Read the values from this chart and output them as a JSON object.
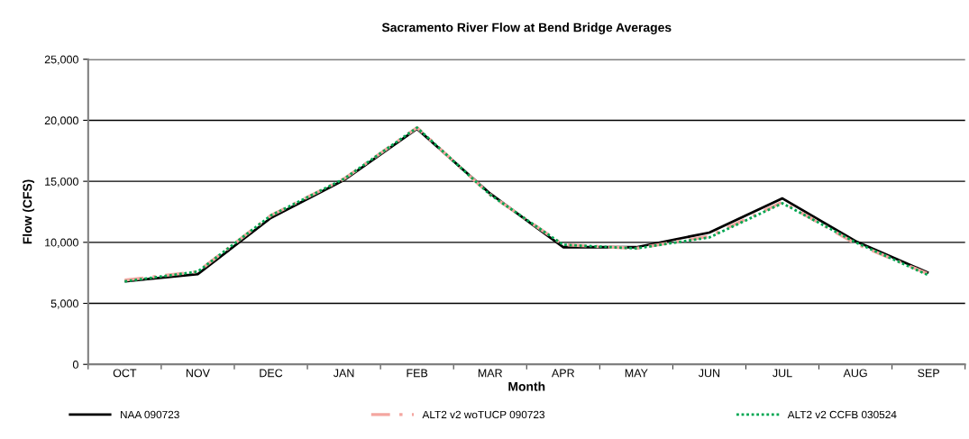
{
  "chart_data": {
    "type": "line",
    "title": "Sacramento River Flow at Bend Bridge Averages",
    "xlabel": "Month",
    "ylabel": "Flow (CFS)",
    "categories": [
      "OCT",
      "NOV",
      "DEC",
      "JAN",
      "FEB",
      "MAR",
      "APR",
      "MAY",
      "JUN",
      "JUL",
      "AUG",
      "SEP"
    ],
    "series": [
      {
        "name": "NAA 090723",
        "color": "#000000",
        "line_style": "solid",
        "values": [
          6800,
          7400,
          12000,
          15100,
          19300,
          14000,
          9600,
          9600,
          10800,
          13600,
          10100,
          7500
        ]
      },
      {
        "name": "ALT2 v2 woTUCP 090723",
        "color": "#f4a6a0",
        "line_style": "dashed",
        "values": [
          6900,
          7600,
          12200,
          15200,
          19400,
          13900,
          9800,
          9500,
          10500,
          13300,
          9900,
          7400
        ]
      },
      {
        "name": "ALT2 v2 CCFB 030524",
        "color": "#00a651",
        "line_style": "dotted",
        "values": [
          6800,
          7600,
          12200,
          15200,
          19400,
          13900,
          9800,
          9500,
          10400,
          13200,
          10000,
          7300
        ]
      }
    ],
    "ylim": [
      0,
      25000
    ],
    "yticks": [
      {
        "value": 0,
        "label": "0"
      },
      {
        "value": 5000,
        "label": "5,000"
      },
      {
        "value": 10000,
        "label": "10,000"
      },
      {
        "value": 15000,
        "label": "15,000"
      },
      {
        "value": 20000,
        "label": "20,000"
      },
      {
        "value": 25000,
        "label": "25,000"
      }
    ],
    "grid": "y",
    "legend": "bottom",
    "marker": "none"
  }
}
